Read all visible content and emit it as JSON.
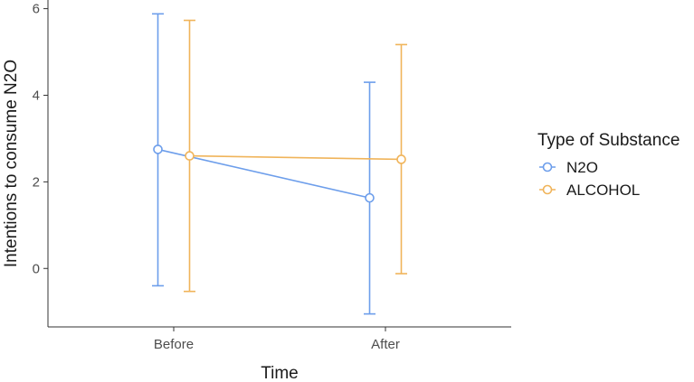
{
  "chart_data": {
    "type": "line",
    "title": "",
    "xlabel": "Time",
    "ylabel": "Intentions to consume N2O",
    "categories": [
      "Before",
      "After"
    ],
    "y_ticks": [
      "0",
      "2",
      "4",
      "6"
    ],
    "ylim": [
      -1.35,
      6.2
    ],
    "grid": false,
    "legend_title": "Type of Substance",
    "legend_position": "right",
    "series": [
      {
        "name": "N2O",
        "color": "#6d9eeb",
        "values": [
          2.75,
          1.63
        ],
        "lower": [
          -0.4,
          -1.05
        ],
        "upper": [
          5.88,
          4.3
        ]
      },
      {
        "name": "ALCOHOL",
        "color": "#f0b45a",
        "values": [
          2.6,
          2.52
        ],
        "lower": [
          -0.53,
          -0.12
        ],
        "upper": [
          5.73,
          5.17
        ]
      }
    ]
  }
}
